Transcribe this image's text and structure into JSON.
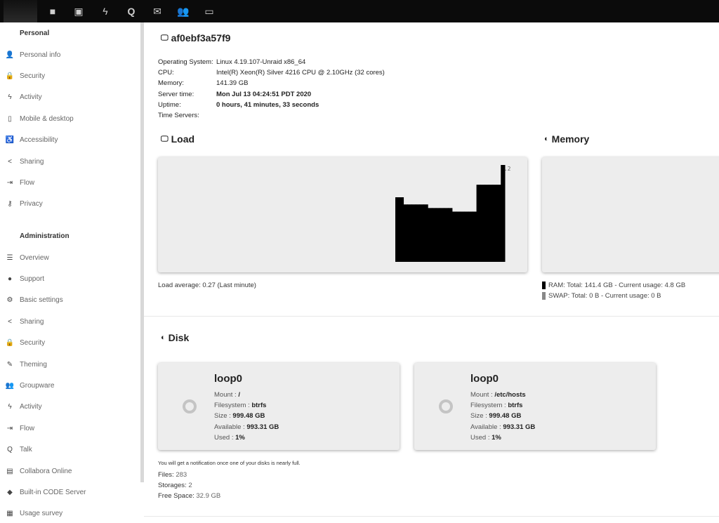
{
  "topbar": {
    "apps": [
      {
        "icon": "folder-icon",
        "name": "files"
      },
      {
        "icon": "image-icon",
        "name": "photos"
      },
      {
        "icon": "lightning-icon",
        "name": "activity"
      },
      {
        "icon": "talk-icon",
        "name": "talk"
      },
      {
        "icon": "mail-icon",
        "name": "mail"
      },
      {
        "icon": "contacts-icon",
        "name": "contacts"
      },
      {
        "icon": "calendar-icon",
        "name": "calendar"
      }
    ]
  },
  "sidebar": {
    "personal_heading": "Personal",
    "personal": [
      {
        "label": "Personal info",
        "icon": "user-icon"
      },
      {
        "label": "Security",
        "icon": "lock-icon"
      },
      {
        "label": "Activity",
        "icon": "lightning-icon"
      },
      {
        "label": "Mobile & desktop",
        "icon": "phone-icon"
      },
      {
        "label": "Accessibility",
        "icon": "accessibility-icon"
      },
      {
        "label": "Sharing",
        "icon": "share-icon"
      },
      {
        "label": "Flow",
        "icon": "flow-icon"
      },
      {
        "label": "Privacy",
        "icon": "key-icon"
      }
    ],
    "admin_heading": "Administration",
    "admin": [
      {
        "label": "Overview",
        "icon": "list-icon"
      },
      {
        "label": "Support",
        "icon": "comment-icon"
      },
      {
        "label": "Basic settings",
        "icon": "gear-icon"
      },
      {
        "label": "Sharing",
        "icon": "share-icon"
      },
      {
        "label": "Security",
        "icon": "lock-icon"
      },
      {
        "label": "Theming",
        "icon": "brush-icon"
      },
      {
        "label": "Groupware",
        "icon": "group-icon"
      },
      {
        "label": "Activity",
        "icon": "lightning-icon"
      },
      {
        "label": "Flow",
        "icon": "flow-icon"
      },
      {
        "label": "Talk",
        "icon": "talk-icon"
      },
      {
        "label": "Collabora Online",
        "icon": "document-icon"
      },
      {
        "label": "Built-in CODE Server",
        "icon": "code-icon"
      },
      {
        "label": "Usage survey",
        "icon": "survey-icon"
      }
    ]
  },
  "server": {
    "hostname": "af0ebf3a57f9",
    "rows": [
      {
        "label": "Operating System:",
        "value": "Linux 4.19.107-Unraid x86_64"
      },
      {
        "label": "CPU:",
        "value": "Intel(R) Xeon(R) Silver 4216 CPU @ 2.10GHz (32 cores)"
      },
      {
        "label": "Memory:",
        "value": "141.39 GB"
      },
      {
        "label": "Server time:",
        "value": "Mon Jul 13 04:24:51 PDT 2020"
      },
      {
        "label": "Uptime:",
        "value": "0 hours, 41 minutes, 33 seconds"
      },
      {
        "label": "Time Servers:",
        "value": ""
      }
    ]
  },
  "load": {
    "title": "Load",
    "average_text": "Load average: 0.27 (Last minute)"
  },
  "memory": {
    "title": "Memory",
    "ram_text": "RAM: Total: 141.4 GB - Current usage: 4.8 GB",
    "swap_text": "SWAP: Total: 0 B - Current usage: 0 B",
    "ram_color": "#000000",
    "swap_color": "#888888"
  },
  "chart_data": {
    "type": "area",
    "max_label": "0.2",
    "ymax": 0.27,
    "values": [
      0.18,
      0.18,
      0.16,
      0.16,
      0.16,
      0.16,
      0.16,
      0.16,
      0.15,
      0.15,
      0.15,
      0.15,
      0.15,
      0.15,
      0.14,
      0.14,
      0.14,
      0.14,
      0.14,
      0.14,
      0.215,
      0.215,
      0.215,
      0.215,
      0.215,
      0.215,
      0.27
    ],
    "color": "#000000"
  },
  "disk": {
    "title": "Disk",
    "disks": [
      {
        "name": "loop0",
        "mount_label": "Mount :",
        "mount": "/",
        "fs_label": "Filesystem :",
        "fs": "btrfs",
        "size_label": "Size :",
        "size": "999.48 GB",
        "avail_label": "Available :",
        "avail": "993.31 GB",
        "used_label": "Used :",
        "used": "1%"
      },
      {
        "name": "loop0",
        "mount_label": "Mount :",
        "mount": "/etc/hosts",
        "fs_label": "Filesystem :",
        "fs": "btrfs",
        "size_label": "Size :",
        "size": "999.48 GB",
        "avail_label": "Available :",
        "avail": "993.31 GB",
        "used_label": "Used :",
        "used": "1%"
      }
    ],
    "notice": "You will get a notification once one of your disks is nearly full.",
    "files_label": "Files:",
    "files": "283",
    "storages_label": "Storages:",
    "storages": "2",
    "free_label": "Free Space:",
    "free": "32.9 GB"
  }
}
